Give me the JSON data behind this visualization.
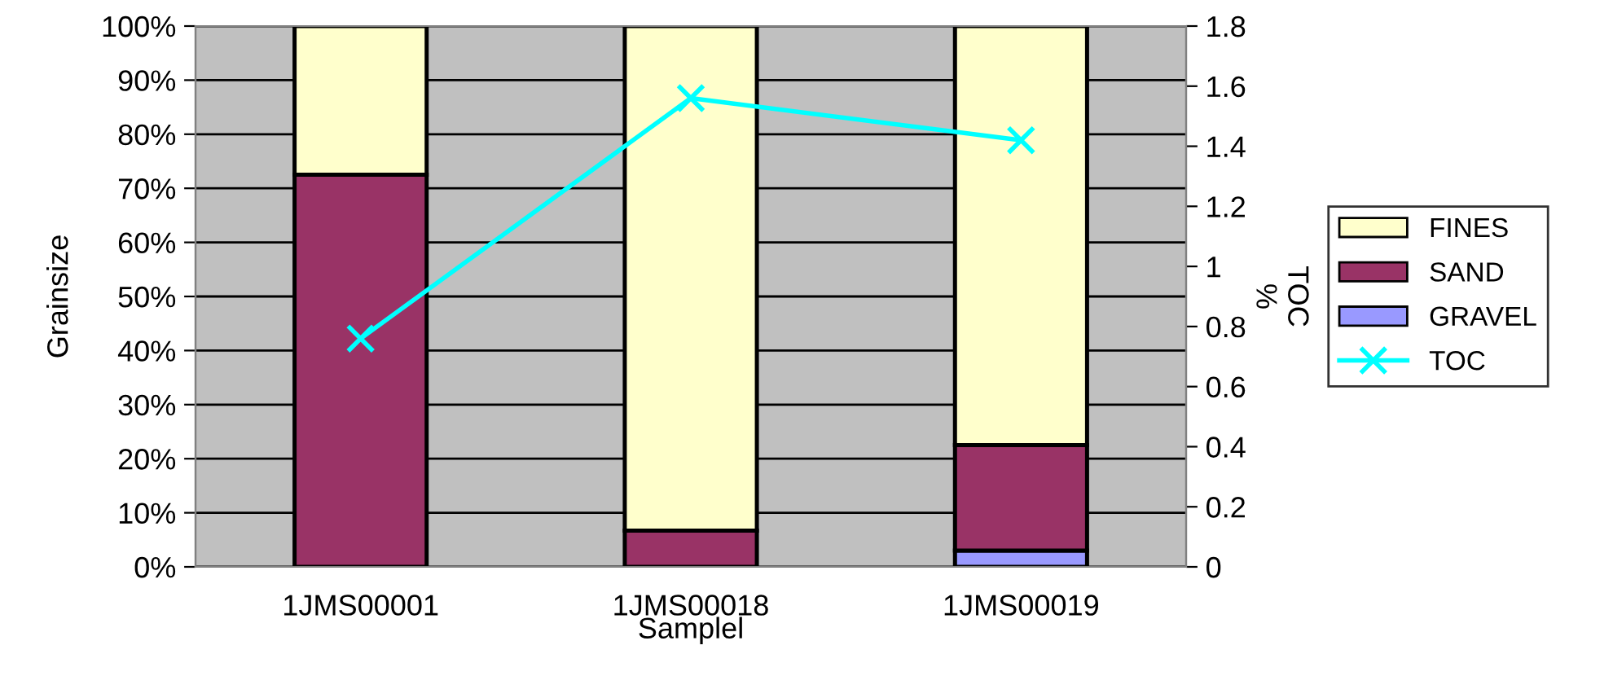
{
  "chart_data": {
    "type": "bar",
    "stacked": true,
    "xlabel": "Samplel",
    "ylabel": "Grainsize",
    "y2label": "TOC\n%",
    "categories": [
      "1JMS00001",
      "1JMS00018",
      "1JMS00019"
    ],
    "series": [
      {
        "name": "GRAVEL",
        "color": "#9999ff",
        "values": [
          0,
          0,
          3
        ]
      },
      {
        "name": "SAND",
        "color": "#993366",
        "values": [
          72.5,
          6.7,
          19.5
        ]
      },
      {
        "name": "FINES",
        "color": "#ffffcc",
        "values": [
          27.5,
          93.3,
          77.5
        ]
      },
      {
        "name": "TOC",
        "type": "line",
        "axis": "y2",
        "color": "#00ffff",
        "marker": "cross",
        "values": [
          0.76,
          1.56,
          1.42
        ]
      }
    ],
    "ylim": [
      0,
      100
    ],
    "yticks": [
      {
        "value": 0,
        "label": "0%"
      },
      {
        "value": 10,
        "label": "10%"
      },
      {
        "value": 20,
        "label": "20%"
      },
      {
        "value": 30,
        "label": "30%"
      },
      {
        "value": 40,
        "label": "40%"
      },
      {
        "value": 50,
        "label": "50%"
      },
      {
        "value": 60,
        "label": "60%"
      },
      {
        "value": 70,
        "label": "70%"
      },
      {
        "value": 80,
        "label": "80%"
      },
      {
        "value": 90,
        "label": "90%"
      },
      {
        "value": 100,
        "label": "100%"
      }
    ],
    "y2lim": [
      0,
      1.8
    ],
    "y2ticks": [
      0,
      {
        "value": 0.2,
        "label": "0.2"
      },
      {
        "value": 0.4,
        "label": "0.4"
      },
      {
        "value": 0.6,
        "label": "0.6"
      },
      {
        "value": 0.8,
        "label": "0.8"
      },
      1,
      {
        "value": 1.2,
        "label": "1.2"
      },
      {
        "value": 1.4,
        "label": "1.4"
      },
      {
        "value": 1.6,
        "label": "1.6"
      },
      {
        "value": 1.8,
        "label": "1.8"
      }
    ],
    "grid": "y",
    "legend": "right"
  }
}
